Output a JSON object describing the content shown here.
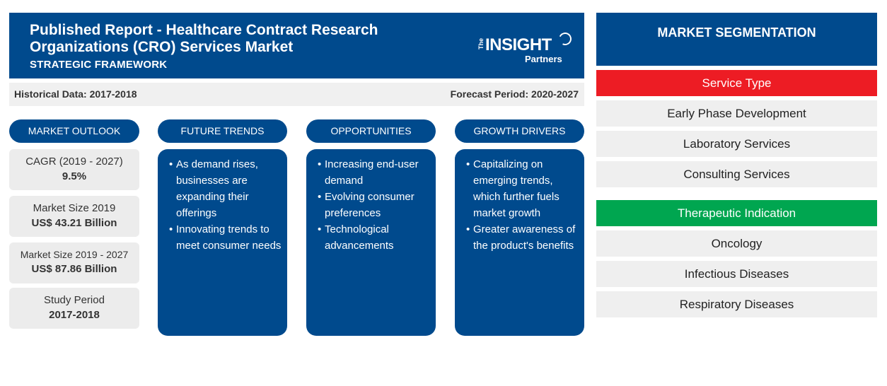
{
  "header": {
    "title": "Published Report - Healthcare Contract Research Organizations (CRO) Services Market",
    "subtitle": "STRATEGIC FRAMEWORK",
    "logo_the": "The",
    "logo_main": "INSIGHT",
    "logo_sub": "Partners"
  },
  "period": {
    "historical": "Historical Data: 2017-2018",
    "forecast": "Forecast Period: 2020-2027"
  },
  "columns": {
    "outlook": "MARKET OUTLOOK",
    "trends": "FUTURE TRENDS",
    "opportunities": "OPPORTUNITIES",
    "drivers": "GROWTH DRIVERS"
  },
  "outlook": [
    {
      "label": "CAGR (2019 - 2027)",
      "value": "9.5%"
    },
    {
      "label": "Market Size 2019",
      "value": "US$ 43.21 Billion"
    },
    {
      "label": "Market Size 2019 - 2027",
      "value": "US$ 87.86 Billion"
    },
    {
      "label": "Study Period",
      "value": "2017-2018"
    }
  ],
  "trends": [
    "As demand rises, businesses are expanding their offerings",
    "Innovating trends to meet consumer needs"
  ],
  "opportunities": [
    "Increasing end-user demand",
    "Evolving consumer preferences",
    "Technological advancements"
  ],
  "drivers": [
    "Capitalizing on emerging trends, which further fuels market growth",
    "Greater awareness of the product's benefits"
  ],
  "segmentation": {
    "title": "MARKET SEGMENTATION",
    "service_type": {
      "label": "Service Type",
      "color": "#ed1c24",
      "items": [
        "Early Phase Development",
        "Laboratory Services",
        "Consulting Services"
      ]
    },
    "therapeutic": {
      "label": "Therapeutic Indication",
      "color": "#00a650",
      "items": [
        "Oncology",
        "Infectious Diseases",
        "Respiratory Diseases"
      ]
    }
  },
  "colors": {
    "primary": "#004a8d",
    "card_bg": "#ececec"
  }
}
